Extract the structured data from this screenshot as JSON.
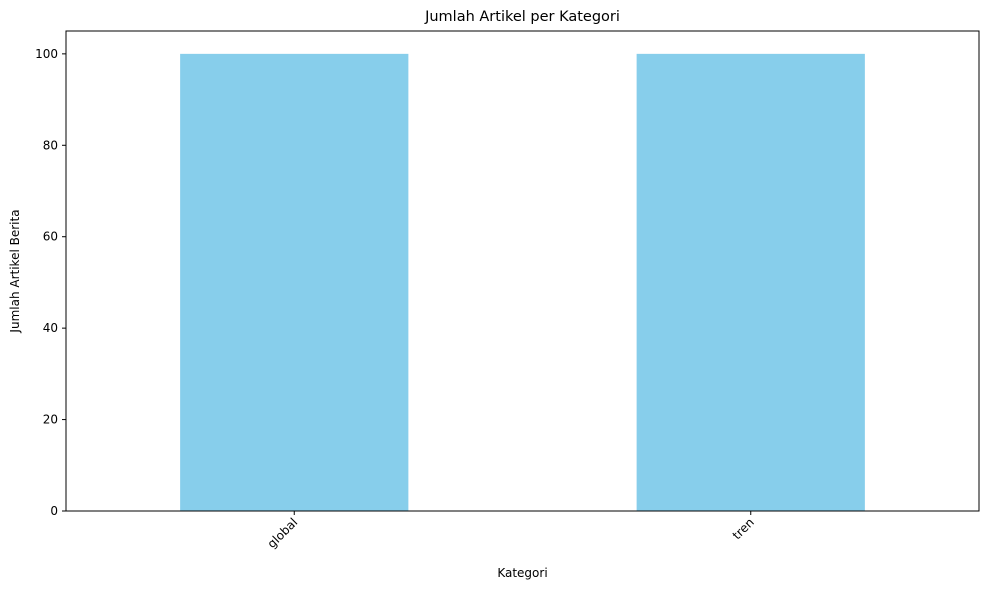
{
  "chart_data": {
    "type": "bar",
    "title": "Jumlah Artikel per Kategori",
    "xlabel": "Kategori",
    "ylabel": "Jumlah Artikel Berita",
    "categories": [
      "global",
      "tren"
    ],
    "values": [
      100,
      100
    ],
    "ylim": [
      0,
      105
    ],
    "yticks": [
      0,
      20,
      40,
      60,
      80,
      100
    ],
    "bar_color": "#87CEEB",
    "grid": false,
    "legend": "none",
    "xtick_rotation": 45
  }
}
